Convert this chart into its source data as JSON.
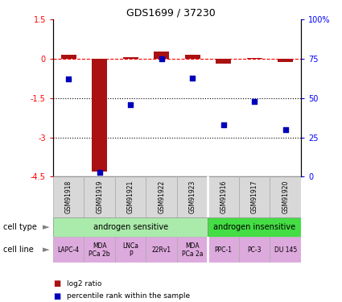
{
  "title": "GDS1699 / 37230",
  "samples": [
    "GSM91918",
    "GSM91919",
    "GSM91921",
    "GSM91922",
    "GSM91923",
    "GSM91916",
    "GSM91917",
    "GSM91920"
  ],
  "log2_ratio": [
    0.15,
    -4.3,
    0.08,
    0.28,
    0.15,
    -0.18,
    0.05,
    -0.12
  ],
  "percentile_rank": [
    62,
    3,
    46,
    75,
    63,
    33,
    48,
    30
  ],
  "ylim_left": [
    -4.5,
    1.5
  ],
  "ylim_right": [
    0,
    100
  ],
  "yticks_left": [
    1.5,
    0,
    -1.5,
    -3,
    -4.5
  ],
  "yticks_right": [
    100,
    75,
    50,
    25,
    0
  ],
  "ytick_labels_left": [
    "1.5",
    "0",
    "-1.5",
    "-3",
    "-4.5"
  ],
  "ytick_labels_right": [
    "100%",
    "75",
    "50",
    "25",
    "0"
  ],
  "cell_type_sensitive_color": "#aaeaaa",
  "cell_type_insensitive_color": "#44dd44",
  "cell_line_color": "#ddaadd",
  "gsm_bg_color": "#d8d8d8",
  "bar_color": "#aa1111",
  "dot_color": "#0000bb",
  "legend_bar_label": "log2 ratio",
  "legend_dot_label": "percentile rank within the sample",
  "cell_lines": [
    "LAPC-4",
    "MDA\nPCa 2b",
    "LNCa\nP",
    "22Rv1",
    "MDA\nPCa 2a",
    "PPC-1",
    "PC-3",
    "DU 145"
  ],
  "n_sensitive": 5,
  "n_insensitive": 3
}
